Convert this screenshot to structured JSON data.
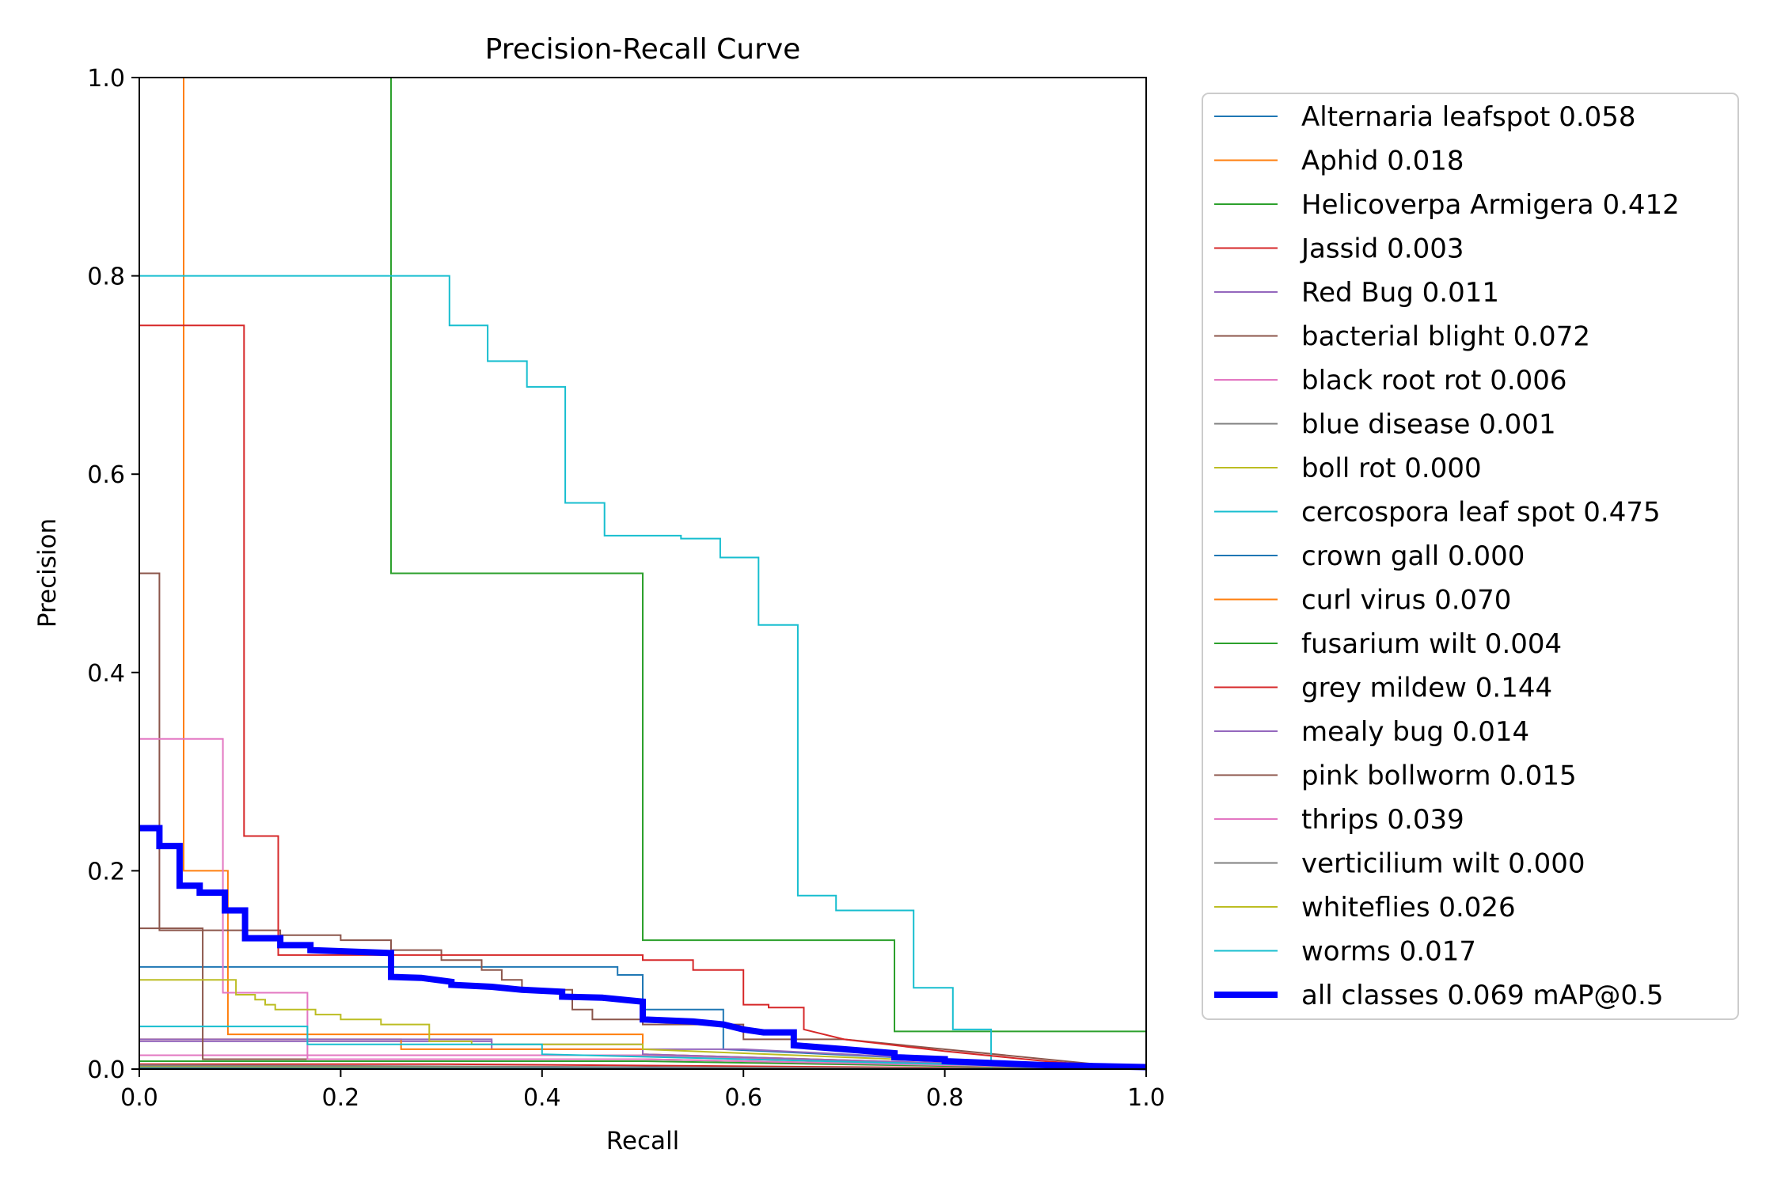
{
  "chart_data": {
    "type": "line",
    "title": "Precision-Recall Curve",
    "xlabel": "Recall",
    "ylabel": "Precision",
    "xlim": [
      0,
      1
    ],
    "ylim": [
      0,
      1
    ],
    "xticks": [
      "0.0",
      "0.2",
      "0.4",
      "0.6",
      "0.8",
      "1.0"
    ],
    "yticks": [
      "0.0",
      "0.2",
      "0.4",
      "0.6",
      "0.8",
      "1.0"
    ],
    "grid": false,
    "legend_position": "outside-right",
    "series": [
      {
        "name": "Alternaria leafspot 0.058",
        "color": "#1f77b4",
        "width": 2,
        "points": [
          [
            0,
            0.103
          ],
          [
            0.475,
            0.103
          ],
          [
            0.475,
            0.095
          ],
          [
            0.5,
            0.095
          ],
          [
            0.5,
            0.06
          ],
          [
            0.58,
            0.06
          ],
          [
            0.58,
            0.02
          ],
          [
            1,
            0.0
          ]
        ]
      },
      {
        "name": "Aphid 0.018",
        "color": "#ff7f0e",
        "width": 2,
        "points": [
          [
            0.044,
            1.0
          ],
          [
            0.044,
            0.2
          ],
          [
            0.088,
            0.2
          ],
          [
            0.088,
            0.035
          ],
          [
            0.5,
            0.035
          ],
          [
            0.5,
            0.015
          ],
          [
            1,
            0.0
          ]
        ]
      },
      {
        "name": "Helicoverpa Armigera 0.412",
        "color": "#2ca02c",
        "width": 2,
        "points": [
          [
            0.25,
            1.0
          ],
          [
            0.25,
            0.5
          ],
          [
            0.5,
            0.5
          ],
          [
            0.5,
            0.13
          ],
          [
            0.75,
            0.13
          ],
          [
            0.75,
            0.038
          ],
          [
            1.0,
            0.038
          ],
          [
            1.0,
            0.0
          ]
        ]
      },
      {
        "name": "Jassid 0.003",
        "color": "#d62728",
        "width": 2,
        "points": [
          [
            0,
            0.005
          ],
          [
            0.3,
            0.005
          ],
          [
            1,
            0.0
          ]
        ]
      },
      {
        "name": "Red Bug 0.011",
        "color": "#9467bd",
        "width": 2,
        "points": [
          [
            0,
            0.028
          ],
          [
            0.35,
            0.028
          ],
          [
            0.35,
            0.02
          ],
          [
            0.6,
            0.02
          ],
          [
            1,
            0.0
          ]
        ]
      },
      {
        "name": "bacterial blight 0.072",
        "color": "#8c564b",
        "width": 2,
        "points": [
          [
            0,
            0.5
          ],
          [
            0.02,
            0.5
          ],
          [
            0.02,
            0.14
          ],
          [
            0.14,
            0.14
          ],
          [
            0.14,
            0.135
          ],
          [
            0.2,
            0.135
          ],
          [
            0.2,
            0.13
          ],
          [
            0.25,
            0.13
          ],
          [
            0.25,
            0.12
          ],
          [
            0.3,
            0.12
          ],
          [
            0.3,
            0.11
          ],
          [
            0.34,
            0.11
          ],
          [
            0.34,
            0.1
          ],
          [
            0.36,
            0.1
          ],
          [
            0.36,
            0.09
          ],
          [
            0.38,
            0.09
          ],
          [
            0.38,
            0.08
          ],
          [
            0.43,
            0.08
          ],
          [
            0.43,
            0.06
          ],
          [
            0.45,
            0.06
          ],
          [
            0.45,
            0.05
          ],
          [
            0.5,
            0.05
          ],
          [
            0.5,
            0.045
          ],
          [
            0.6,
            0.045
          ],
          [
            0.6,
            0.03
          ],
          [
            0.7,
            0.03
          ],
          [
            1,
            0.0
          ]
        ]
      },
      {
        "name": "black root rot 0.006",
        "color": "#e377c2",
        "width": 2,
        "points": [
          [
            0,
            0.014
          ],
          [
            0.5,
            0.014
          ],
          [
            1,
            0.0
          ]
        ]
      },
      {
        "name": "blue disease 0.001",
        "color": "#7f7f7f",
        "width": 2,
        "points": [
          [
            0,
            0.003
          ],
          [
            1,
            0.0
          ]
        ]
      },
      {
        "name": "boll rot 0.000",
        "color": "#bcbd22",
        "width": 2,
        "points": [
          [
            0,
            0.002
          ],
          [
            1,
            0.0
          ]
        ]
      },
      {
        "name": "cercospora leaf spot 0.475",
        "color": "#17becf",
        "width": 2,
        "points": [
          [
            0,
            0.8
          ],
          [
            0.308,
            0.8
          ],
          [
            0.308,
            0.75
          ],
          [
            0.346,
            0.75
          ],
          [
            0.346,
            0.714
          ],
          [
            0.385,
            0.714
          ],
          [
            0.385,
            0.688
          ],
          [
            0.423,
            0.688
          ],
          [
            0.423,
            0.571
          ],
          [
            0.462,
            0.571
          ],
          [
            0.462,
            0.538
          ],
          [
            0.538,
            0.538
          ],
          [
            0.538,
            0.535
          ],
          [
            0.577,
            0.535
          ],
          [
            0.577,
            0.516
          ],
          [
            0.615,
            0.516
          ],
          [
            0.615,
            0.448
          ],
          [
            0.654,
            0.448
          ],
          [
            0.654,
            0.175
          ],
          [
            0.692,
            0.175
          ],
          [
            0.692,
            0.16
          ],
          [
            0.769,
            0.16
          ],
          [
            0.769,
            0.082
          ],
          [
            0.808,
            0.082
          ],
          [
            0.808,
            0.04
          ],
          [
            0.846,
            0.04
          ],
          [
            0.846,
            0.0
          ]
        ]
      },
      {
        "name": "crown gall 0.000",
        "color": "#1f77b4",
        "width": 2,
        "points": [
          [
            0,
            0.001
          ],
          [
            1,
            0.0
          ]
        ]
      },
      {
        "name": "curl virus 0.070",
        "color": "#ff7f0e",
        "width": 2,
        "points": [
          [
            0,
            0.03
          ],
          [
            0.26,
            0.03
          ],
          [
            0.26,
            0.02
          ],
          [
            0.5,
            0.02
          ],
          [
            0.5,
            0.015
          ],
          [
            1,
            0.0
          ]
        ]
      },
      {
        "name": "fusarium wilt 0.004",
        "color": "#2ca02c",
        "width": 2,
        "points": [
          [
            0,
            0.008
          ],
          [
            0.5,
            0.008
          ],
          [
            1,
            0.0
          ]
        ]
      },
      {
        "name": "grey mildew 0.144",
        "color": "#d62728",
        "width": 2,
        "points": [
          [
            0,
            0.75
          ],
          [
            0.104,
            0.75
          ],
          [
            0.104,
            0.235
          ],
          [
            0.138,
            0.235
          ],
          [
            0.138,
            0.115
          ],
          [
            0.5,
            0.115
          ],
          [
            0.5,
            0.11
          ],
          [
            0.55,
            0.11
          ],
          [
            0.55,
            0.1
          ],
          [
            0.6,
            0.1
          ],
          [
            0.6,
            0.065
          ],
          [
            0.625,
            0.065
          ],
          [
            0.625,
            0.062
          ],
          [
            0.66,
            0.062
          ],
          [
            0.66,
            0.04
          ],
          [
            0.7,
            0.03
          ],
          [
            0.8,
            0.018
          ],
          [
            0.9,
            0.008
          ],
          [
            1.0,
            0.0
          ]
        ]
      },
      {
        "name": "mealy bug 0.014",
        "color": "#9467bd",
        "width": 2,
        "points": [
          [
            0,
            0.03
          ],
          [
            0.35,
            0.03
          ],
          [
            0.35,
            0.025
          ],
          [
            0.5,
            0.025
          ],
          [
            0.5,
            0.015
          ],
          [
            1,
            0.0
          ]
        ]
      },
      {
        "name": "pink bollworm 0.015",
        "color": "#8c564b",
        "width": 2,
        "points": [
          [
            0,
            0.142
          ],
          [
            0.063,
            0.142
          ],
          [
            0.063,
            0.01
          ],
          [
            0.5,
            0.01
          ],
          [
            1,
            0.0
          ]
        ]
      },
      {
        "name": "thrips 0.039",
        "color": "#e377c2",
        "width": 2,
        "points": [
          [
            0,
            0.333
          ],
          [
            0.083,
            0.333
          ],
          [
            0.083,
            0.077
          ],
          [
            0.167,
            0.077
          ],
          [
            0.167,
            0.01
          ],
          [
            0.5,
            0.01
          ],
          [
            1,
            0.0
          ]
        ]
      },
      {
        "name": "verticilium wilt 0.000",
        "color": "#7f7f7f",
        "width": 2,
        "points": [
          [
            0,
            0.004
          ],
          [
            1,
            0.0
          ]
        ]
      },
      {
        "name": "whiteflies 0.026",
        "color": "#bcbd22",
        "width": 2,
        "points": [
          [
            0,
            0.09
          ],
          [
            0.096,
            0.09
          ],
          [
            0.096,
            0.075
          ],
          [
            0.115,
            0.075
          ],
          [
            0.115,
            0.07
          ],
          [
            0.125,
            0.07
          ],
          [
            0.125,
            0.065
          ],
          [
            0.135,
            0.065
          ],
          [
            0.135,
            0.06
          ],
          [
            0.175,
            0.06
          ],
          [
            0.175,
            0.055
          ],
          [
            0.2,
            0.055
          ],
          [
            0.2,
            0.05
          ],
          [
            0.24,
            0.05
          ],
          [
            0.24,
            0.045
          ],
          [
            0.288,
            0.045
          ],
          [
            0.288,
            0.028
          ],
          [
            0.33,
            0.028
          ],
          [
            0.33,
            0.025
          ],
          [
            0.5,
            0.025
          ],
          [
            0.5,
            0.02
          ],
          [
            1,
            0.0
          ]
        ]
      },
      {
        "name": "worms 0.017",
        "color": "#17becf",
        "width": 2,
        "points": [
          [
            0,
            0.043
          ],
          [
            0.167,
            0.043
          ],
          [
            0.167,
            0.025
          ],
          [
            0.4,
            0.025
          ],
          [
            0.4,
            0.015
          ],
          [
            1,
            0.0
          ]
        ]
      },
      {
        "name": "all classes 0.069 mAP@0.5",
        "color": "#0000ff",
        "width": 8,
        "points": [
          [
            0,
            0.243
          ],
          [
            0.02,
            0.243
          ],
          [
            0.02,
            0.225
          ],
          [
            0.04,
            0.225
          ],
          [
            0.04,
            0.185
          ],
          [
            0.06,
            0.185
          ],
          [
            0.06,
            0.178
          ],
          [
            0.085,
            0.178
          ],
          [
            0.085,
            0.16
          ],
          [
            0.105,
            0.16
          ],
          [
            0.105,
            0.132
          ],
          [
            0.14,
            0.132
          ],
          [
            0.14,
            0.125
          ],
          [
            0.17,
            0.125
          ],
          [
            0.17,
            0.12
          ],
          [
            0.25,
            0.117
          ],
          [
            0.25,
            0.093
          ],
          [
            0.28,
            0.092
          ],
          [
            0.31,
            0.088
          ],
          [
            0.31,
            0.085
          ],
          [
            0.35,
            0.083
          ],
          [
            0.38,
            0.08
          ],
          [
            0.42,
            0.078
          ],
          [
            0.42,
            0.073
          ],
          [
            0.46,
            0.072
          ],
          [
            0.5,
            0.068
          ],
          [
            0.5,
            0.05
          ],
          [
            0.55,
            0.048
          ],
          [
            0.58,
            0.045
          ],
          [
            0.6,
            0.04
          ],
          [
            0.62,
            0.037
          ],
          [
            0.65,
            0.037
          ],
          [
            0.65,
            0.024
          ],
          [
            0.7,
            0.02
          ],
          [
            0.75,
            0.016
          ],
          [
            0.75,
            0.012
          ],
          [
            0.8,
            0.01
          ],
          [
            0.8,
            0.008
          ],
          [
            0.85,
            0.006
          ],
          [
            0.9,
            0.004
          ],
          [
            0.95,
            0.003
          ],
          [
            1.0,
            0.002
          ]
        ]
      }
    ]
  }
}
